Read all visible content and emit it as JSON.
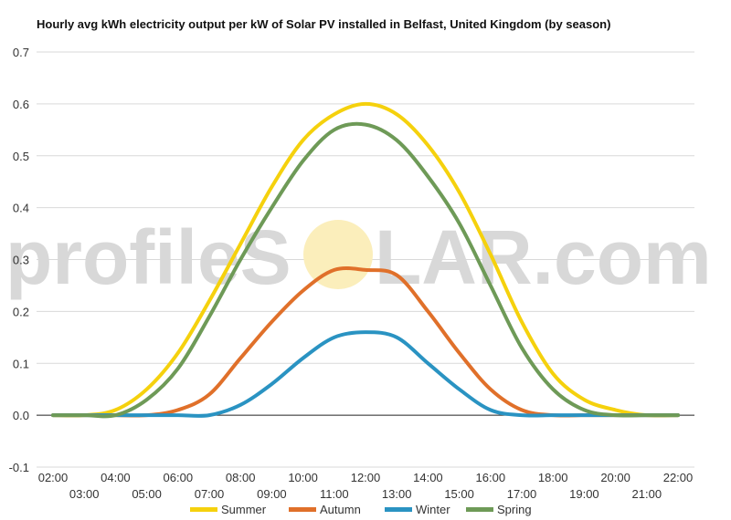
{
  "chart_data": {
    "type": "line",
    "title": "Hourly avg kWh electricity output per kW of Solar PV installed in Belfast, United Kingdom (by season)",
    "xlabel": "",
    "ylabel": "",
    "ylim": [
      -0.1,
      0.7
    ],
    "yticks": [
      "-0.1",
      "0.0",
      "0.1",
      "0.2",
      "0.3",
      "0.4",
      "0.5",
      "0.6",
      "0.7"
    ],
    "x": [
      "02:00",
      "03:00",
      "04:00",
      "05:00",
      "06:00",
      "07:00",
      "08:00",
      "09:00",
      "10:00",
      "11:00",
      "12:00",
      "13:00",
      "14:00",
      "15:00",
      "16:00",
      "17:00",
      "18:00",
      "19:00",
      "20:00",
      "21:00",
      "22:00"
    ],
    "grid": true,
    "legend_position": "bottom",
    "series": [
      {
        "name": "Summer",
        "color": "#f5d10d",
        "values": [
          0,
          0,
          0.01,
          0.05,
          0.12,
          0.22,
          0.33,
          0.44,
          0.53,
          0.58,
          0.6,
          0.58,
          0.52,
          0.43,
          0.31,
          0.18,
          0.08,
          0.03,
          0.01,
          0,
          0
        ]
      },
      {
        "name": "Autumn",
        "color": "#e0702a",
        "values": [
          0,
          0,
          0,
          0,
          0.01,
          0.04,
          0.11,
          0.18,
          0.24,
          0.28,
          0.28,
          0.27,
          0.2,
          0.12,
          0.05,
          0.01,
          0,
          0,
          0,
          0,
          0
        ]
      },
      {
        "name": "Winter",
        "color": "#2a93c2",
        "values": [
          0,
          0,
          0,
          0,
          0,
          0,
          0.02,
          0.06,
          0.11,
          0.15,
          0.16,
          0.15,
          0.1,
          0.05,
          0.01,
          0,
          0,
          0,
          0,
          0,
          0
        ]
      },
      {
        "name": "Spring",
        "color": "#6e9a57",
        "values": [
          0,
          0,
          0,
          0.03,
          0.09,
          0.19,
          0.3,
          0.4,
          0.49,
          0.55,
          0.56,
          0.53,
          0.46,
          0.37,
          0.25,
          0.13,
          0.05,
          0.01,
          0,
          0,
          0
        ]
      }
    ]
  },
  "watermark": {
    "text_left": "profileS",
    "text_right": "LAR.com",
    "sun_color": "#fbeebb"
  }
}
